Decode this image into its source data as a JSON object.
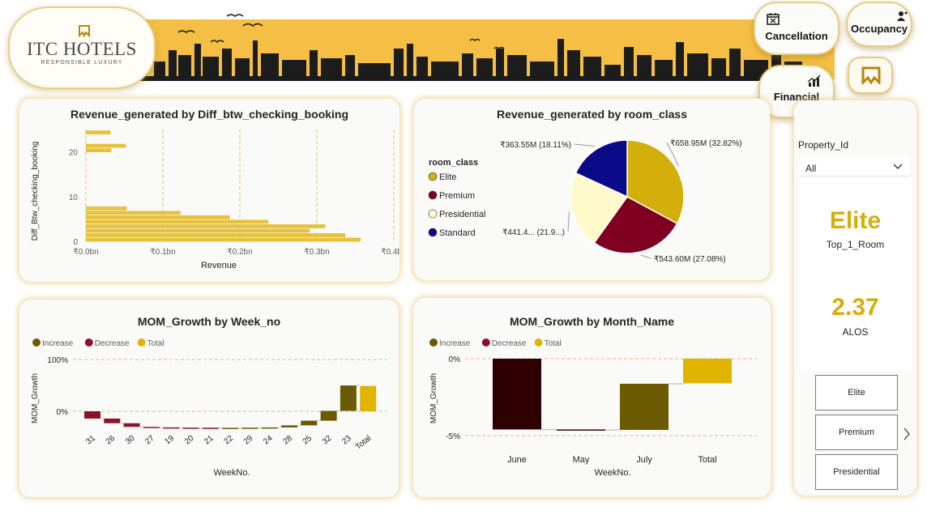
{
  "header": {
    "logo_title": "ITC HOTELS",
    "logo_subtitle": "RESPONSIBLE LUXURY",
    "nav": {
      "cancellation": "Cancellation",
      "occupancy": "Occupancy",
      "financial": "Financial"
    }
  },
  "colors": {
    "accent": "#f4bf44",
    "gold": "#d4af0c",
    "maroon": "#7f0020",
    "cream": "#fff9cc",
    "navy": "#0b0b8a",
    "increase": "#6b5a00",
    "decrease": "#2e0004",
    "decrease_week": "#8a1426",
    "total": "#e0b400",
    "bar": "#e6c23c"
  },
  "chart_data": [
    {
      "type": "bar",
      "orientation": "horizontal",
      "title": "Revenue_generated by Diff_btw_checking_booking",
      "xlabel": "Revenue",
      "ylabel": "Diff_Btw_checking_booking",
      "xticks": [
        "₹0.0bn",
        "₹0.1bn",
        "₹0.2bn",
        "₹0.3bn",
        "₹0.4bn"
      ],
      "yticks": [
        "0",
        "10",
        "20"
      ],
      "xlim": [
        0,
        0.4
      ],
      "ylim": [
        0,
        25
      ],
      "x": [
        0,
        1,
        2,
        3,
        4,
        5,
        6,
        7,
        20,
        21,
        24
      ],
      "values": [
        0.357,
        0.337,
        0.291,
        0.311,
        0.237,
        0.187,
        0.123,
        0.053,
        0.033,
        0.052,
        0.032
      ]
    },
    {
      "type": "pie",
      "title": "Revenue_generated by room_class",
      "legend_title": "room_class",
      "legend_placement": "left",
      "categories": [
        "Elite",
        "Premium",
        "Presidential",
        "Standard"
      ],
      "values": [
        32.82,
        27.08,
        21.99,
        18.11
      ],
      "data_labels": [
        "₹658.95M (32.82%)",
        "₹543.60M (27.08%)",
        "₹441.4... (21.9...)",
        "₹363.55M (18.11%)"
      ]
    },
    {
      "type": "waterfall",
      "title": "MOM_Growth by Week_no",
      "xlabel": "WeekNo.",
      "ylabel": "MOM_Growth",
      "legend": [
        "Increase",
        "Decrease",
        "Total"
      ],
      "yticks": [
        "100%",
        "0%"
      ],
      "ylim": [
        -30,
        100
      ],
      "categories": [
        "31",
        "26",
        "30",
        "27",
        "19",
        "20",
        "21",
        "22",
        "29",
        "24",
        "28",
        "25",
        "32",
        "23",
        "Total"
      ],
      "values": [
        -14,
        -9,
        -7,
        -1,
        -0.5,
        -0.2,
        -0.2,
        0,
        0.3,
        0.5,
        4,
        9,
        19,
        49,
        49
      ]
    },
    {
      "type": "waterfall",
      "title": "MOM_Growth by Month_Name",
      "xlabel": "WeekNo.",
      "ylabel": "MOM_Growth",
      "legend": [
        "Increase",
        "Decrease",
        "Total"
      ],
      "yticks": [
        "0%",
        "-5%"
      ],
      "ylim": [
        -5,
        0
      ],
      "categories": [
        "June",
        "May",
        "July",
        "Total"
      ],
      "values": [
        -4.6,
        -0.03,
        3.0,
        -1.6
      ]
    }
  ],
  "slicer": {
    "title": "Property_Id",
    "selected": "All"
  },
  "kpis": {
    "top_room_value": "Elite",
    "top_room_label": "Top_1_Room",
    "alos_value": "2.37",
    "alos_label": "ALOS"
  },
  "room_buttons": [
    "Elite",
    "Premium",
    "Presidential"
  ]
}
